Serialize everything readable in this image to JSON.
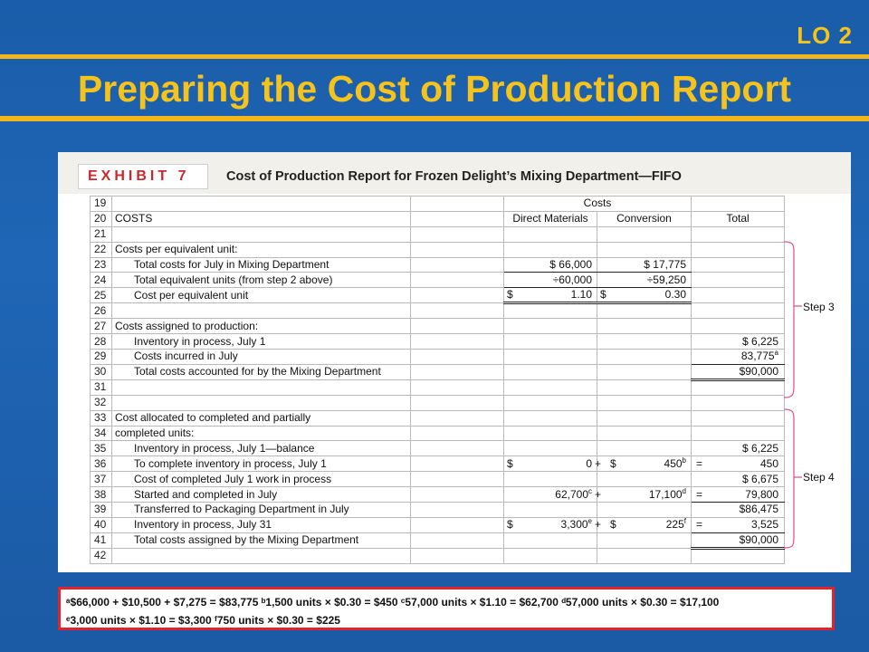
{
  "lo_label": "LO 2",
  "slide_title": "Preparing the Cost of Production Report",
  "exhibit": {
    "badge": "EXHIBIT 7",
    "title": "Cost of Production Report for Frozen Delight’s Mixing Department—FIFO",
    "header_costs": "Costs",
    "col_headers": [
      "Direct Materials",
      "Conversion",
      "Total"
    ]
  },
  "rows": [
    {
      "n": "19",
      "label": "",
      "indent": false,
      "dm": "",
      "cv": "",
      "tot": "",
      "op1": "",
      "op2": ""
    },
    {
      "n": "20",
      "label": "COSTS",
      "indent": false,
      "dm": "",
      "cv": "",
      "tot": "",
      "op1": "",
      "op2": ""
    },
    {
      "n": "21",
      "label": "",
      "indent": false,
      "dm": "",
      "cv": "",
      "tot": "",
      "op1": "",
      "op2": ""
    },
    {
      "n": "22",
      "label": "Costs per equivalent unit:",
      "indent": false,
      "dm": "",
      "cv": "",
      "tot": "",
      "op1": "",
      "op2": ""
    },
    {
      "n": "23",
      "label": "Total costs for July in Mixing Department",
      "indent": true,
      "dm": "$ 66,000",
      "cv": "$ 17,775",
      "tot": "",
      "op1": "",
      "op2": ""
    },
    {
      "n": "24",
      "label": "Total equivalent units (from step 2 above)",
      "indent": true,
      "dm": "÷60,000",
      "cv": "÷59,250",
      "tot": "",
      "op1": "",
      "op2": ""
    },
    {
      "n": "25",
      "label": "Cost per equivalent unit",
      "indent": true,
      "dm": "1.10",
      "cv": "0.30",
      "tot": "",
      "op1": "",
      "op2": ""
    },
    {
      "n": "26",
      "label": "",
      "indent": false,
      "dm": "",
      "cv": "",
      "tot": "",
      "op1": "",
      "op2": ""
    },
    {
      "n": "27",
      "label": "Costs assigned to production:",
      "indent": false,
      "dm": "",
      "cv": "",
      "tot": "",
      "op1": "",
      "op2": ""
    },
    {
      "n": "28",
      "label": "Inventory in process, July 1",
      "indent": true,
      "dm": "",
      "cv": "",
      "tot": "$ 6,225",
      "op1": "",
      "op2": ""
    },
    {
      "n": "29",
      "label": "Costs incurred in July",
      "indent": true,
      "dm": "",
      "cv": "",
      "tot": "83,775",
      "op1": "",
      "op2": ""
    },
    {
      "n": "30",
      "label": "Total costs accounted for by the Mixing Department",
      "indent": true,
      "dm": "",
      "cv": "",
      "tot": "$90,000",
      "op1": "",
      "op2": ""
    },
    {
      "n": "31",
      "label": "",
      "indent": false,
      "dm": "",
      "cv": "",
      "tot": "",
      "op1": "",
      "op2": ""
    },
    {
      "n": "32",
      "label": "",
      "indent": false,
      "dm": "",
      "cv": "",
      "tot": "",
      "op1": "",
      "op2": ""
    },
    {
      "n": "33",
      "label": "Cost allocated to completed and partially",
      "indent": false,
      "dm": "",
      "cv": "",
      "tot": "",
      "op1": "",
      "op2": ""
    },
    {
      "n": "34",
      "label": "completed units:",
      "indent": false,
      "dm": "",
      "cv": "",
      "tot": "",
      "op1": "",
      "op2": ""
    },
    {
      "n": "35",
      "label": "Inventory in process, July 1—balance",
      "indent": true,
      "dm": "",
      "cv": "",
      "tot": "$ 6,225",
      "op1": "",
      "op2": ""
    },
    {
      "n": "36",
      "label": "To complete inventory in process, July 1",
      "indent": true,
      "dm": "0",
      "cv": "450",
      "tot": "450",
      "op1": "+",
      "op2": "="
    },
    {
      "n": "37",
      "label": "Cost of completed July 1 work in process",
      "indent": true,
      "dm": "",
      "cv": "",
      "tot": "$ 6,675",
      "op1": "",
      "op2": ""
    },
    {
      "n": "38",
      "label": "Started and completed in July",
      "indent": true,
      "dm": "62,700",
      "cv": "17,100",
      "tot": "79,800",
      "op1": "+",
      "op2": "="
    },
    {
      "n": "39",
      "label": "Transferred to Packaging Department in July",
      "indent": true,
      "dm": "",
      "cv": "",
      "tot": "$86,475",
      "op1": "",
      "op2": ""
    },
    {
      "n": "40",
      "label": "Inventory in process, July 31",
      "indent": true,
      "dm": "3,300",
      "cv": "225",
      "tot": "3,525",
      "op1": "+",
      "op2": "="
    },
    {
      "n": "41",
      "label": "Total costs assigned by the Mixing Department",
      "indent": true,
      "dm": "",
      "cv": "",
      "tot": "$90,000",
      "op1": "",
      "op2": ""
    },
    {
      "n": "42",
      "label": "",
      "indent": false,
      "dm": "",
      "cv": "",
      "tot": "",
      "op1": "",
      "op2": ""
    }
  ],
  "footnote_marks": {
    "a": "a",
    "b": "b",
    "c": "c",
    "d": "d",
    "e": "e",
    "f": "f"
  },
  "dollar": "$",
  "steps": {
    "step3": "Step 3",
    "step4": "Step 4"
  },
  "notes": {
    "line1": "ᵃ$66,000 + $10,500 + $7,275 = $83,775 ᵇ1,500 units × $0.30 = $450 ᶜ57,000 units × $1.10 = $62,700 ᵈ57,000 units × $0.30 = $17,100",
    "line2": "ᵉ3,000 units × $1.10 = $3,300 ᶠ750 units × $0.30 = $225"
  }
}
